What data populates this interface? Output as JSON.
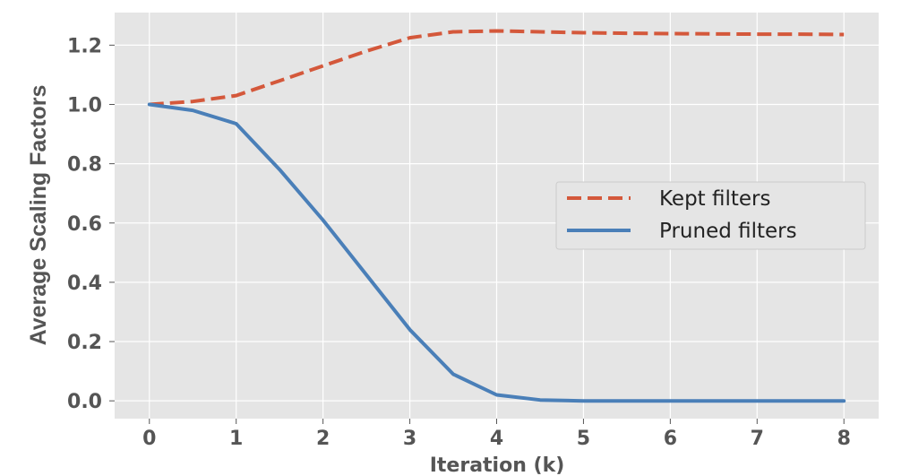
{
  "chart_data": {
    "type": "line",
    "xlabel": "Iteration (k)",
    "ylabel": "Average Scaling Factors",
    "xlim": [
      -0.4,
      8.4
    ],
    "ylim": [
      -0.06,
      1.31
    ],
    "x_ticks": [
      "0",
      "1",
      "2",
      "3",
      "4",
      "5",
      "6",
      "7",
      "8"
    ],
    "y_ticks": [
      "0.0",
      "0.2",
      "0.4",
      "0.6",
      "0.8",
      "1.0",
      "1.2"
    ],
    "grid": true,
    "legend_position": "center-right",
    "series": [
      {
        "name": "Kept filters",
        "color": "#d4583b",
        "style": "dashed",
        "x": [
          0,
          0.5,
          1,
          1.5,
          2,
          2.5,
          3,
          3.5,
          4,
          4.5,
          5,
          5.5,
          6,
          6.5,
          7,
          7.5,
          8
        ],
        "y": [
          1.0,
          1.01,
          1.03,
          1.08,
          1.13,
          1.18,
          1.225,
          1.245,
          1.248,
          1.245,
          1.242,
          1.24,
          1.239,
          1.238,
          1.237,
          1.237,
          1.236
        ]
      },
      {
        "name": "Pruned filters",
        "color": "#4a7fb8",
        "style": "solid",
        "x": [
          0,
          0.5,
          1,
          1.5,
          2,
          2.5,
          3,
          3.5,
          4,
          4.5,
          5,
          5.5,
          6,
          6.5,
          7,
          7.5,
          8
        ],
        "y": [
          1.0,
          0.98,
          0.935,
          0.78,
          0.61,
          0.425,
          0.24,
          0.09,
          0.02,
          0.003,
          0.0,
          0.0,
          0.0,
          0.0,
          0.0,
          0.0,
          0.0
        ]
      }
    ]
  }
}
